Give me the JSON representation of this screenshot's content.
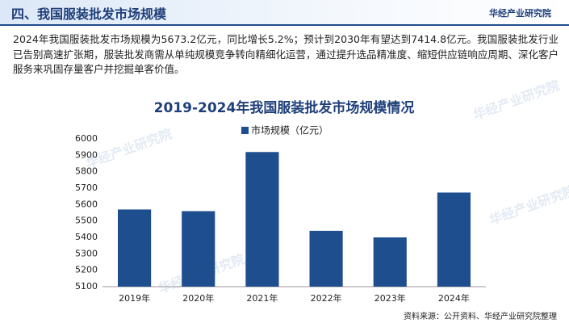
{
  "header": {
    "title": "四、我国服装批发市场规模",
    "logo": "华经产业研究院"
  },
  "paragraph": "2024年我国服装批发市场规模为5673.2亿元，同比增长5.2%；预计到2030年有望达到7414.8亿元。我国服装批发行业已告别高速扩张期，服装批发商需从单纯规模竞争转向精细化运营，通过提升选品精准度、缩短供应链响应周期、深化客户服务来巩固存量客户并挖掘单客价值。",
  "watermark": "华经产业研究院",
  "source": "资料来源：公开资料、华经产业研究院整理",
  "chart_data": {
    "type": "bar",
    "title": "2019-2024年我国服装批发市场规模情况",
    "categories": [
      "2019年",
      "2020年",
      "2021年",
      "2022年",
      "2023年",
      "2024年"
    ],
    "series": [
      {
        "name": "市场规模（亿元）",
        "color": "#1f4e8f",
        "values": [
          5570,
          5560,
          5920,
          5440,
          5400,
          5673.2
        ]
      }
    ],
    "ylim": [
      5100,
      6000
    ],
    "yticks": [
      5100,
      5200,
      5300,
      5400,
      5500,
      5600,
      5700,
      5800,
      5900,
      6000
    ],
    "grid": false
  }
}
